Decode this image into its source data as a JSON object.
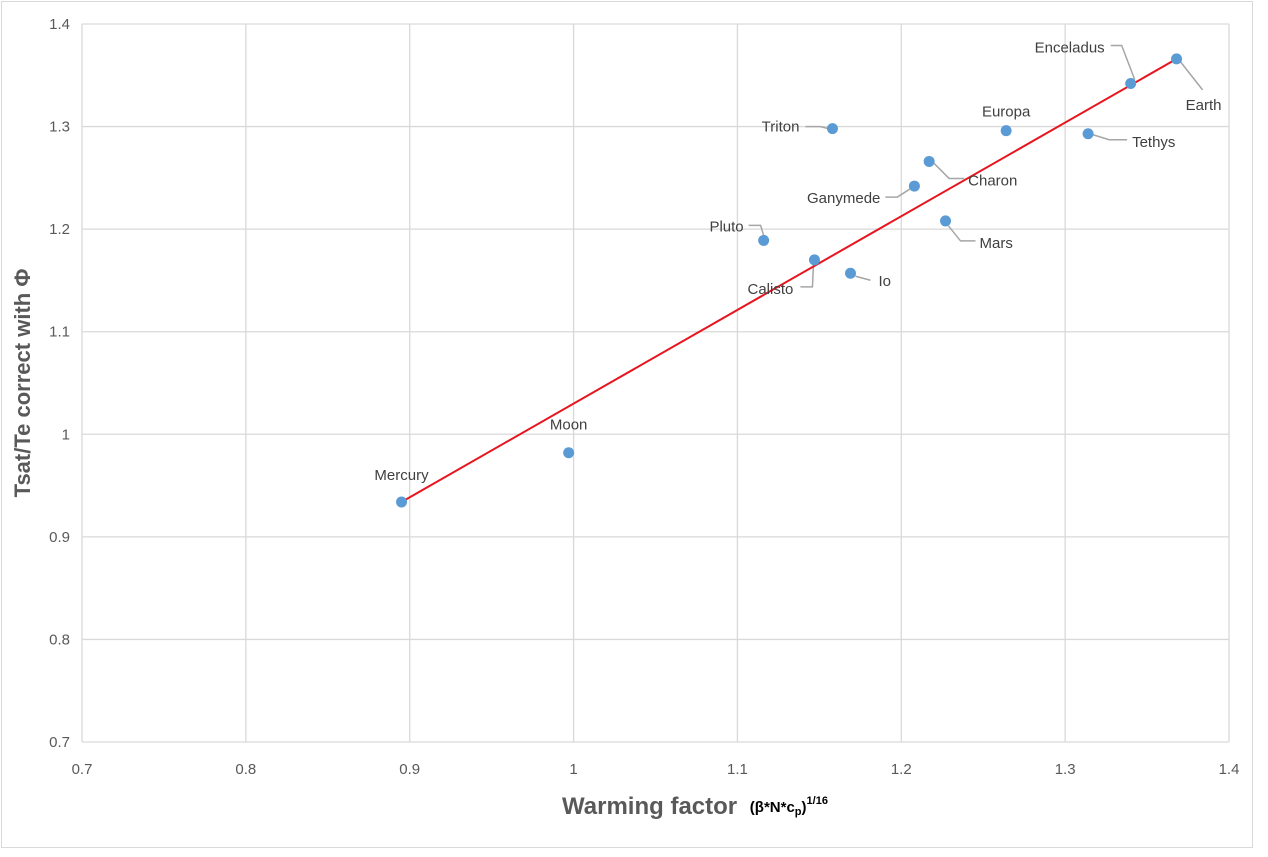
{
  "chart_data": {
    "type": "scatter",
    "title": "",
    "xlabel": "Warming factor",
    "xlabel_suffix": "(β*N*cp)1/16",
    "xlabel_suffix_base": "(β*N*c",
    "xlabel_suffix_sub": "p",
    "xlabel_suffix_close": ")",
    "xlabel_suffix_sup": "1/16",
    "ylabel": "Tsat/Te correct with Φ",
    "xlim": [
      0.7,
      1.4
    ],
    "ylim": [
      0.7,
      1.4
    ],
    "xticks": [
      "0.7",
      "0.8",
      "0.9",
      "1",
      "1.1",
      "1.2",
      "1.3",
      "1.4"
    ],
    "yticks": [
      "0.7",
      "0.8",
      "0.9",
      "1",
      "1.1",
      "1.2",
      "1.3",
      "1.4"
    ],
    "grid": true,
    "legend": "none",
    "point_color": "#5b9bd5",
    "trendline_color": "#e8141e",
    "points": [
      {
        "label": "Mercury",
        "x": 0.895,
        "y": 0.934
      },
      {
        "label": "Moon",
        "x": 0.997,
        "y": 0.982
      },
      {
        "label": "Pluto",
        "x": 1.116,
        "y": 1.189
      },
      {
        "label": "Calisto",
        "x": 1.147,
        "y": 1.17
      },
      {
        "label": "Io",
        "x": 1.169,
        "y": 1.157
      },
      {
        "label": "Triton",
        "x": 1.158,
        "y": 1.298
      },
      {
        "label": "Ganymede",
        "x": 1.208,
        "y": 1.242
      },
      {
        "label": "Charon",
        "x": 1.217,
        "y": 1.266
      },
      {
        "label": "Mars",
        "x": 1.227,
        "y": 1.208
      },
      {
        "label": "Europa",
        "x": 1.264,
        "y": 1.296
      },
      {
        "label": "Tethys",
        "x": 1.314,
        "y": 1.293
      },
      {
        "label": "Enceladus",
        "x": 1.34,
        "y": 1.342
      },
      {
        "label": "Earth",
        "x": 1.368,
        "y": 1.366
      }
    ],
    "trendline": {
      "x": [
        0.895,
        1.368
      ],
      "y": [
        0.934,
        1.366
      ]
    }
  }
}
